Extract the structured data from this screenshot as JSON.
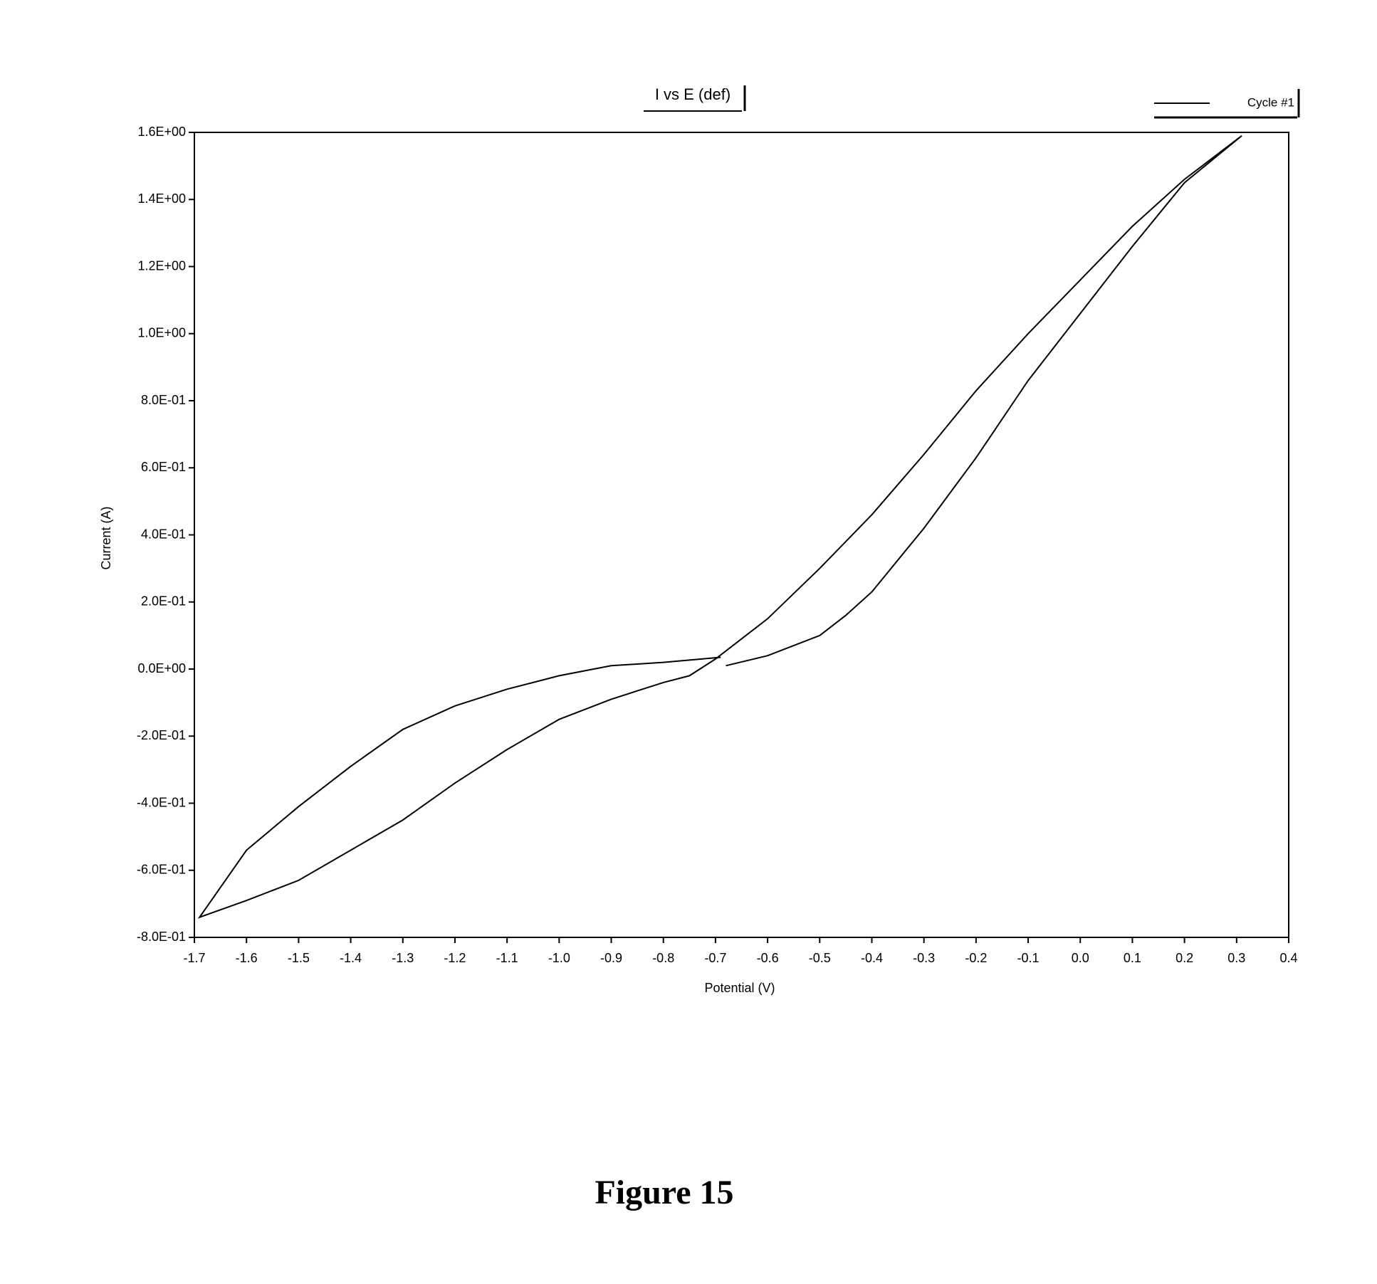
{
  "chart_data": {
    "type": "line",
    "title": "I vs E (def)",
    "x_label": "Potential (V)",
    "y_label": "Current (A)",
    "caption": "Figure 15",
    "legend": "top-right",
    "series": [
      {
        "name": "Cycle #1",
        "color": "#000000",
        "x": [
          -0.68,
          -0.6,
          -0.5,
          -0.45,
          -0.4,
          -0.3,
          -0.2,
          -0.1,
          0.0,
          0.1,
          0.2,
          0.31,
          0.2,
          0.1,
          0.0,
          -0.1,
          -0.2,
          -0.3,
          -0.4,
          -0.5,
          -0.6,
          -0.7,
          -0.75,
          -0.8,
          -0.9,
          -1.0,
          -1.1,
          -1.2,
          -1.3,
          -1.4,
          -1.5,
          -1.6,
          -1.69,
          -1.6,
          -1.5,
          -1.4,
          -1.3,
          -1.2,
          -1.1,
          -1.0,
          -0.9,
          -0.8,
          -0.69
        ],
        "values": [
          0.01,
          0.04,
          0.1,
          0.16,
          0.23,
          0.42,
          0.63,
          0.86,
          1.06,
          1.26,
          1.45,
          1.59,
          1.46,
          1.32,
          1.16,
          1.0,
          0.83,
          0.64,
          0.46,
          0.3,
          0.15,
          0.03,
          -0.02,
          -0.04,
          -0.09,
          -0.15,
          -0.24,
          -0.34,
          -0.45,
          -0.54,
          -0.63,
          -0.69,
          -0.74,
          -0.54,
          -0.41,
          -0.29,
          -0.18,
          -0.11,
          -0.06,
          -0.02,
          0.01,
          0.02,
          0.035
        ]
      }
    ],
    "xlim": [
      -1.7,
      0.4
    ],
    "xticks": [
      {
        "value": -1.7,
        "label": "-1.7"
      },
      {
        "value": -1.6,
        "label": "-1.6"
      },
      {
        "value": -1.5,
        "label": "-1.5"
      },
      {
        "value": -1.4,
        "label": "-1.4"
      },
      {
        "value": -1.3,
        "label": "-1.3"
      },
      {
        "value": -1.2,
        "label": "-1.2"
      },
      {
        "value": -1.1,
        "label": "-1.1"
      },
      {
        "value": -1.0,
        "label": "-1.0"
      },
      {
        "value": -0.9,
        "label": "-0.9"
      },
      {
        "value": -0.8,
        "label": "-0.8"
      },
      {
        "value": -0.7,
        "label": "-0.7"
      },
      {
        "value": -0.6,
        "label": "-0.6"
      },
      {
        "value": -0.5,
        "label": "-0.5"
      },
      {
        "value": -0.4,
        "label": "-0.4"
      },
      {
        "value": -0.3,
        "label": "-0.3"
      },
      {
        "value": -0.2,
        "label": "-0.2"
      },
      {
        "value": -0.1,
        "label": "-0.1"
      },
      {
        "value": 0,
        "label": "0.0"
      },
      0.1,
      0.2,
      0.3,
      0.4
    ],
    "ylim": [
      -0.8,
      1.6
    ],
    "yticks": [
      {
        "value": -0.8,
        "label": "-8.0E-01"
      },
      {
        "value": -0.6,
        "label": "-6.0E-01"
      },
      {
        "value": -0.4,
        "label": "-4.0E-01"
      },
      {
        "value": -0.2,
        "label": "-2.0E-01"
      },
      {
        "value": 0,
        "label": "0.0E+00"
      },
      {
        "value": 0.2,
        "label": "2.0E-01"
      },
      {
        "value": 0.4,
        "label": "4.0E-01"
      },
      {
        "value": 0.6,
        "label": "6.0E-01"
      },
      {
        "value": 0.8,
        "label": "8.0E-01"
      },
      {
        "value": 1.0,
        "label": "1.0E+00"
      },
      {
        "value": 1.2,
        "label": "1.2E+00"
      },
      {
        "value": 1.4,
        "label": "1.4E+00"
      },
      {
        "value": 1.6,
        "label": "1.6E+00"
      }
    ],
    "grid": false
  }
}
